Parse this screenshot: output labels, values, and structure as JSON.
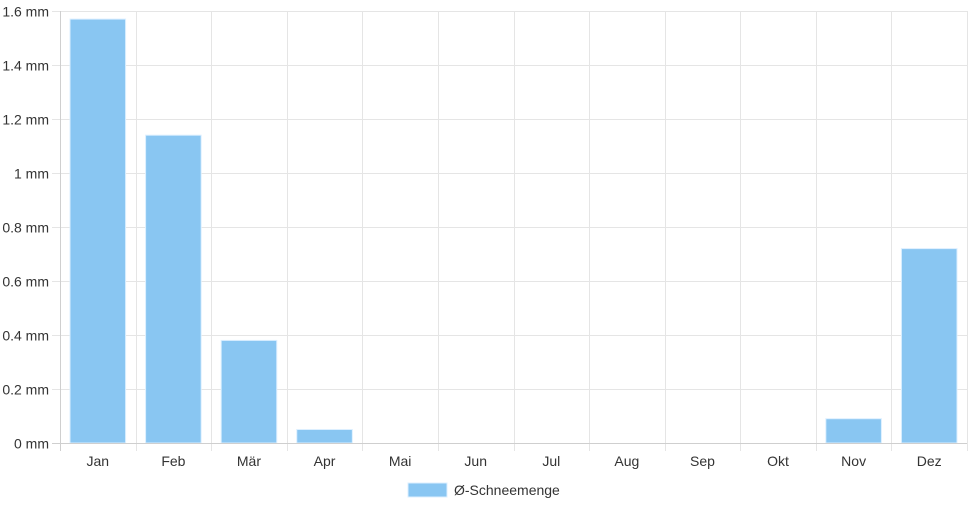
{
  "chart_data": {
    "type": "bar",
    "categories": [
      "Jan",
      "Feb",
      "Mär",
      "Apr",
      "Mai",
      "Jun",
      "Jul",
      "Aug",
      "Sep",
      "Okt",
      "Nov",
      "Dez"
    ],
    "series": [
      {
        "name": "Ø-Schneemenge",
        "values": [
          1.57,
          1.14,
          0.38,
          0.05,
          0,
          0,
          0,
          0,
          0,
          0,
          0.09,
          0.72
        ],
        "color": "#89c6f2",
        "border_color": "#dcefff"
      }
    ],
    "yticks": [
      "0 mm",
      "0.2 mm",
      "0.4 mm",
      "0.6 mm",
      "0.8 mm",
      "1 mm",
      "1.2 mm",
      "1.4 mm",
      "1.6 mm"
    ],
    "ylim": [
      0,
      1.6
    ],
    "grid": true,
    "legend_position": "bottom",
    "title": "",
    "xlabel": "",
    "ylabel": ""
  }
}
